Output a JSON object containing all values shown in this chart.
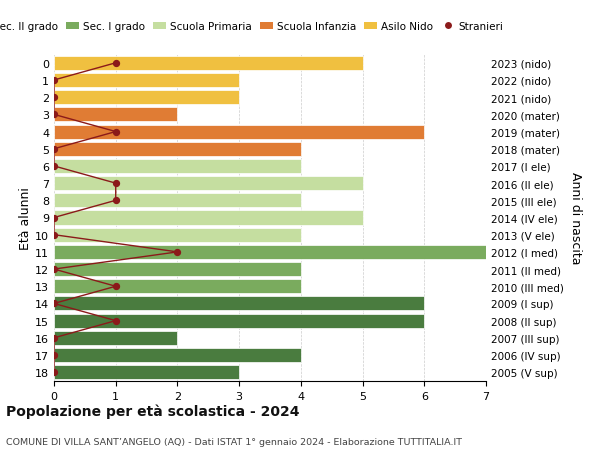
{
  "ages": [
    18,
    17,
    16,
    15,
    14,
    13,
    12,
    11,
    10,
    9,
    8,
    7,
    6,
    5,
    4,
    3,
    2,
    1,
    0
  ],
  "years": [
    "2005 (V sup)",
    "2006 (IV sup)",
    "2007 (III sup)",
    "2008 (II sup)",
    "2009 (I sup)",
    "2010 (III med)",
    "2011 (II med)",
    "2012 (I med)",
    "2013 (V ele)",
    "2014 (IV ele)",
    "2015 (III ele)",
    "2016 (II ele)",
    "2017 (I ele)",
    "2018 (mater)",
    "2019 (mater)",
    "2020 (mater)",
    "2021 (nido)",
    "2022 (nido)",
    "2023 (nido)"
  ],
  "bar_values": [
    3,
    4,
    2,
    6,
    6,
    4,
    4,
    7,
    4,
    5,
    4,
    5,
    4,
    4,
    6,
    2,
    3,
    3,
    5
  ],
  "bar_colors": [
    "#4a7c3f",
    "#4a7c3f",
    "#4a7c3f",
    "#4a7c3f",
    "#4a7c3f",
    "#7aab5e",
    "#7aab5e",
    "#7aab5e",
    "#c5dea0",
    "#c5dea0",
    "#c5dea0",
    "#c5dea0",
    "#c5dea0",
    "#e07c34",
    "#e07c34",
    "#e07c34",
    "#f0c040",
    "#f0c040",
    "#f0c040"
  ],
  "stranieri_x": [
    0,
    0,
    0,
    1,
    0,
    1,
    0,
    2,
    0,
    0,
    1,
    1,
    0,
    0,
    1,
    0,
    0,
    0,
    1
  ],
  "stranieri_color": "#8b1a1a",
  "legend_labels": [
    "Sec. II grado",
    "Sec. I grado",
    "Scuola Primaria",
    "Scuola Infanzia",
    "Asilo Nido",
    "Stranieri"
  ],
  "legend_colors": [
    "#4a7c3f",
    "#7aab5e",
    "#c5dea0",
    "#e07c34",
    "#f0c040",
    "#8b1a1a"
  ],
  "ylabel_left": "Età alunni",
  "ylabel_right": "Anni di nascita",
  "xlim": [
    0,
    7
  ],
  "title": "Popolazione per età scolastica - 2024",
  "subtitle": "COMUNE DI VILLA SANT’ANGELO (AQ) - Dati ISTAT 1° gennaio 2024 - Elaborazione TUTTITALIA.IT",
  "background_color": "#ffffff",
  "grid_color": "#cccccc"
}
